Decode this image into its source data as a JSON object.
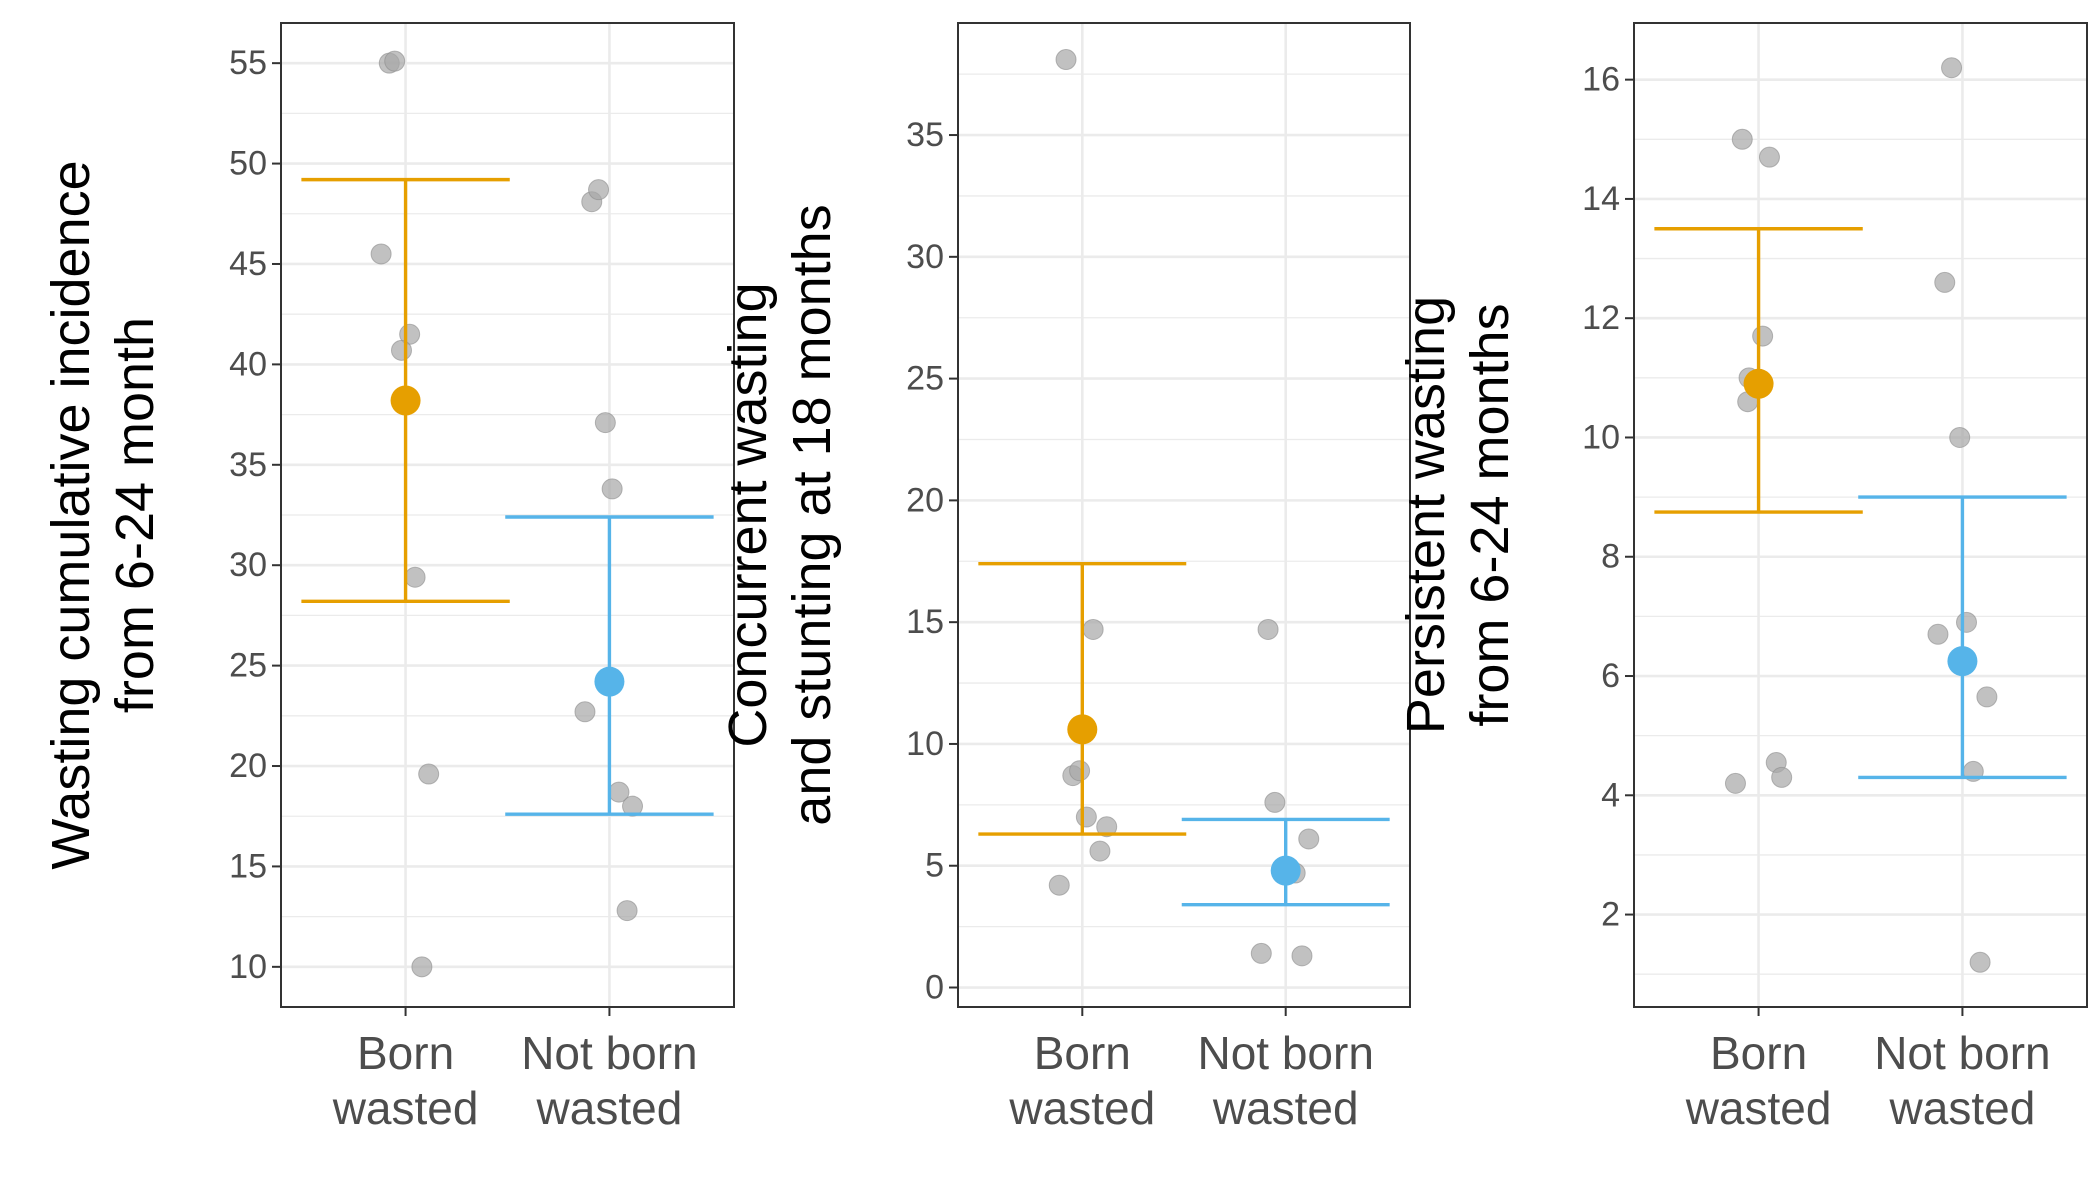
{
  "colors": {
    "born": "#E69F00",
    "not_born": "#56B4E9",
    "points": "#a6a6a6",
    "grid": "#ebebeb",
    "panel_border": "#333333"
  },
  "chart_data": [
    {
      "type": "scatter",
      "ylabel": [
        "Wasting cumulative incidence",
        "from 6-24 month"
      ],
      "categories": [
        [
          "Born",
          "wasted"
        ],
        [
          "Not born",
          "wasted"
        ]
      ],
      "ylim": [
        8,
        57
      ],
      "yticks": [
        10,
        15,
        20,
        25,
        30,
        35,
        40,
        45,
        50,
        55
      ],
      "grid": true,
      "points": [
        {
          "group": 0,
          "jitter": -0.12,
          "y": 55.0
        },
        {
          "group": 0,
          "jitter": -0.08,
          "y": 55.1
        },
        {
          "group": 0,
          "jitter": -0.18,
          "y": 45.5
        },
        {
          "group": 0,
          "jitter": 0.03,
          "y": 41.5
        },
        {
          "group": 0,
          "jitter": -0.03,
          "y": 40.7
        },
        {
          "group": 0,
          "jitter": 0.07,
          "y": 29.4
        },
        {
          "group": 0,
          "jitter": 0.17,
          "y": 19.6
        },
        {
          "group": 0,
          "jitter": 0.12,
          "y": 10.0
        },
        {
          "group": 1,
          "jitter": -0.13,
          "y": 48.1
        },
        {
          "group": 1,
          "jitter": -0.08,
          "y": 48.7
        },
        {
          "group": 1,
          "jitter": -0.03,
          "y": 37.1
        },
        {
          "group": 1,
          "jitter": 0.02,
          "y": 33.8
        },
        {
          "group": 1,
          "jitter": -0.18,
          "y": 22.7
        },
        {
          "group": 1,
          "jitter": 0.07,
          "y": 18.7
        },
        {
          "group": 1,
          "jitter": 0.17,
          "y": 18.0
        },
        {
          "group": 1,
          "jitter": 0.13,
          "y": 12.8
        }
      ],
      "summary": [
        {
          "group": 0,
          "mean": 38.2,
          "lower": 28.2,
          "upper": 49.2
        },
        {
          "group": 1,
          "mean": 24.2,
          "lower": 17.6,
          "upper": 32.4
        }
      ]
    },
    {
      "type": "scatter",
      "ylabel": [
        "Concurrent wasting",
        "and stunting at 18 months"
      ],
      "categories": [
        [
          "Born",
          "wasted"
        ],
        [
          "Not born",
          "wasted"
        ]
      ],
      "ylim": [
        -0.8,
        39.6
      ],
      "yticks": [
        0,
        5,
        10,
        15,
        20,
        25,
        30,
        35
      ],
      "grid": true,
      "points": [
        {
          "group": 0,
          "jitter": -0.12,
          "y": 38.1
        },
        {
          "group": 0,
          "jitter": 0.08,
          "y": 14.7
        },
        {
          "group": 0,
          "jitter": -0.07,
          "y": 8.7
        },
        {
          "group": 0,
          "jitter": -0.02,
          "y": 8.9
        },
        {
          "group": 0,
          "jitter": 0.03,
          "y": 7.0
        },
        {
          "group": 0,
          "jitter": 0.18,
          "y": 6.6
        },
        {
          "group": 0,
          "jitter": 0.13,
          "y": 5.6
        },
        {
          "group": 0,
          "jitter": -0.17,
          "y": 4.2
        },
        {
          "group": 1,
          "jitter": -0.13,
          "y": 14.7
        },
        {
          "group": 1,
          "jitter": -0.08,
          "y": 7.6
        },
        {
          "group": 1,
          "jitter": 0.17,
          "y": 6.1
        },
        {
          "group": 1,
          "jitter": 0.07,
          "y": 4.7
        },
        {
          "group": 1,
          "jitter": 0.02,
          "y": 4.9
        },
        {
          "group": 1,
          "jitter": -0.03,
          "y": 4.8
        },
        {
          "group": 1,
          "jitter": -0.18,
          "y": 1.4
        },
        {
          "group": 1,
          "jitter": 0.12,
          "y": 1.3
        }
      ],
      "summary": [
        {
          "group": 0,
          "mean": 10.6,
          "lower": 6.3,
          "upper": 17.4
        },
        {
          "group": 1,
          "mean": 4.8,
          "lower": 3.4,
          "upper": 6.9
        }
      ]
    },
    {
      "type": "scatter",
      "ylabel": [
        "Persistent wasting",
        "from 6-24 months"
      ],
      "categories": [
        [
          "Born",
          "wasted"
        ],
        [
          "Not born",
          "wasted"
        ]
      ],
      "ylim": [
        0.45,
        16.95
      ],
      "yticks": [
        2,
        4,
        6,
        8,
        10,
        12,
        14,
        16
      ],
      "grid": true,
      "points": [
        {
          "group": 0,
          "jitter": -0.12,
          "y": 15.0
        },
        {
          "group": 0,
          "jitter": 0.08,
          "y": 14.7
        },
        {
          "group": 0,
          "jitter": 0.03,
          "y": 11.7
        },
        {
          "group": 0,
          "jitter": -0.07,
          "y": 11.0
        },
        {
          "group": 0,
          "jitter": -0.02,
          "y": 10.9
        },
        {
          "group": 0,
          "jitter": -0.08,
          "y": 10.6
        },
        {
          "group": 0,
          "jitter": -0.17,
          "y": 4.2
        },
        {
          "group": 0,
          "jitter": 0.13,
          "y": 4.55
        },
        {
          "group": 0,
          "jitter": 0.17,
          "y": 4.3
        },
        {
          "group": 1,
          "jitter": -0.08,
          "y": 16.2
        },
        {
          "group": 1,
          "jitter": -0.13,
          "y": 12.6
        },
        {
          "group": 1,
          "jitter": -0.02,
          "y": 10.0
        },
        {
          "group": 1,
          "jitter": 0.03,
          "y": 6.9
        },
        {
          "group": 1,
          "jitter": -0.18,
          "y": 6.7
        },
        {
          "group": 1,
          "jitter": 0.18,
          "y": 5.65
        },
        {
          "group": 1,
          "jitter": 0.08,
          "y": 4.4
        },
        {
          "group": 1,
          "jitter": 0.13,
          "y": 1.2
        }
      ],
      "summary": [
        {
          "group": 0,
          "mean": 10.9,
          "lower": 8.75,
          "upper": 13.5
        },
        {
          "group": 1,
          "mean": 6.25,
          "lower": 4.3,
          "upper": 9.0
        }
      ]
    }
  ]
}
